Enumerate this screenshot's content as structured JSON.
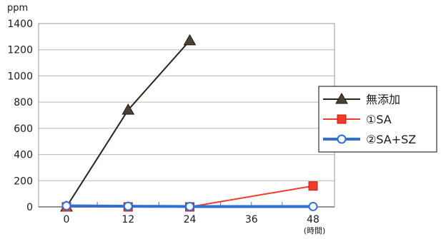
{
  "chart_data": {
    "type": "line",
    "title": "",
    "xlabel": "",
    "ylabel": "ppm",
    "x_unit_label": "(時間)",
    "x": [
      0,
      12,
      24,
      36,
      48
    ],
    "x_tick_labels": [
      "0",
      "12",
      "24",
      "36",
      "48"
    ],
    "y_ticks": [
      0,
      200,
      400,
      600,
      800,
      1000,
      1200,
      1400
    ],
    "xlim": [
      0,
      48
    ],
    "ylim": [
      0,
      1400
    ],
    "grid": "horizontal",
    "legend_position": "right",
    "series": [
      {
        "name": "無添加",
        "color": "#2b2418",
        "marker": "triangle",
        "points": [
          [
            0,
            0
          ],
          [
            12,
            740
          ],
          [
            24,
            1270
          ]
        ]
      },
      {
        "name": "①SA",
        "color": "#f03c2a",
        "marker": "square",
        "points": [
          [
            0,
            0
          ],
          [
            12,
            0
          ],
          [
            24,
            0
          ],
          [
            48,
            160
          ]
        ]
      },
      {
        "name": "②SA+SZ",
        "color": "#2f6fd6",
        "marker": "circle-open",
        "points": [
          [
            0,
            8
          ],
          [
            12,
            5
          ],
          [
            24,
            3
          ],
          [
            48,
            3
          ]
        ]
      }
    ]
  }
}
